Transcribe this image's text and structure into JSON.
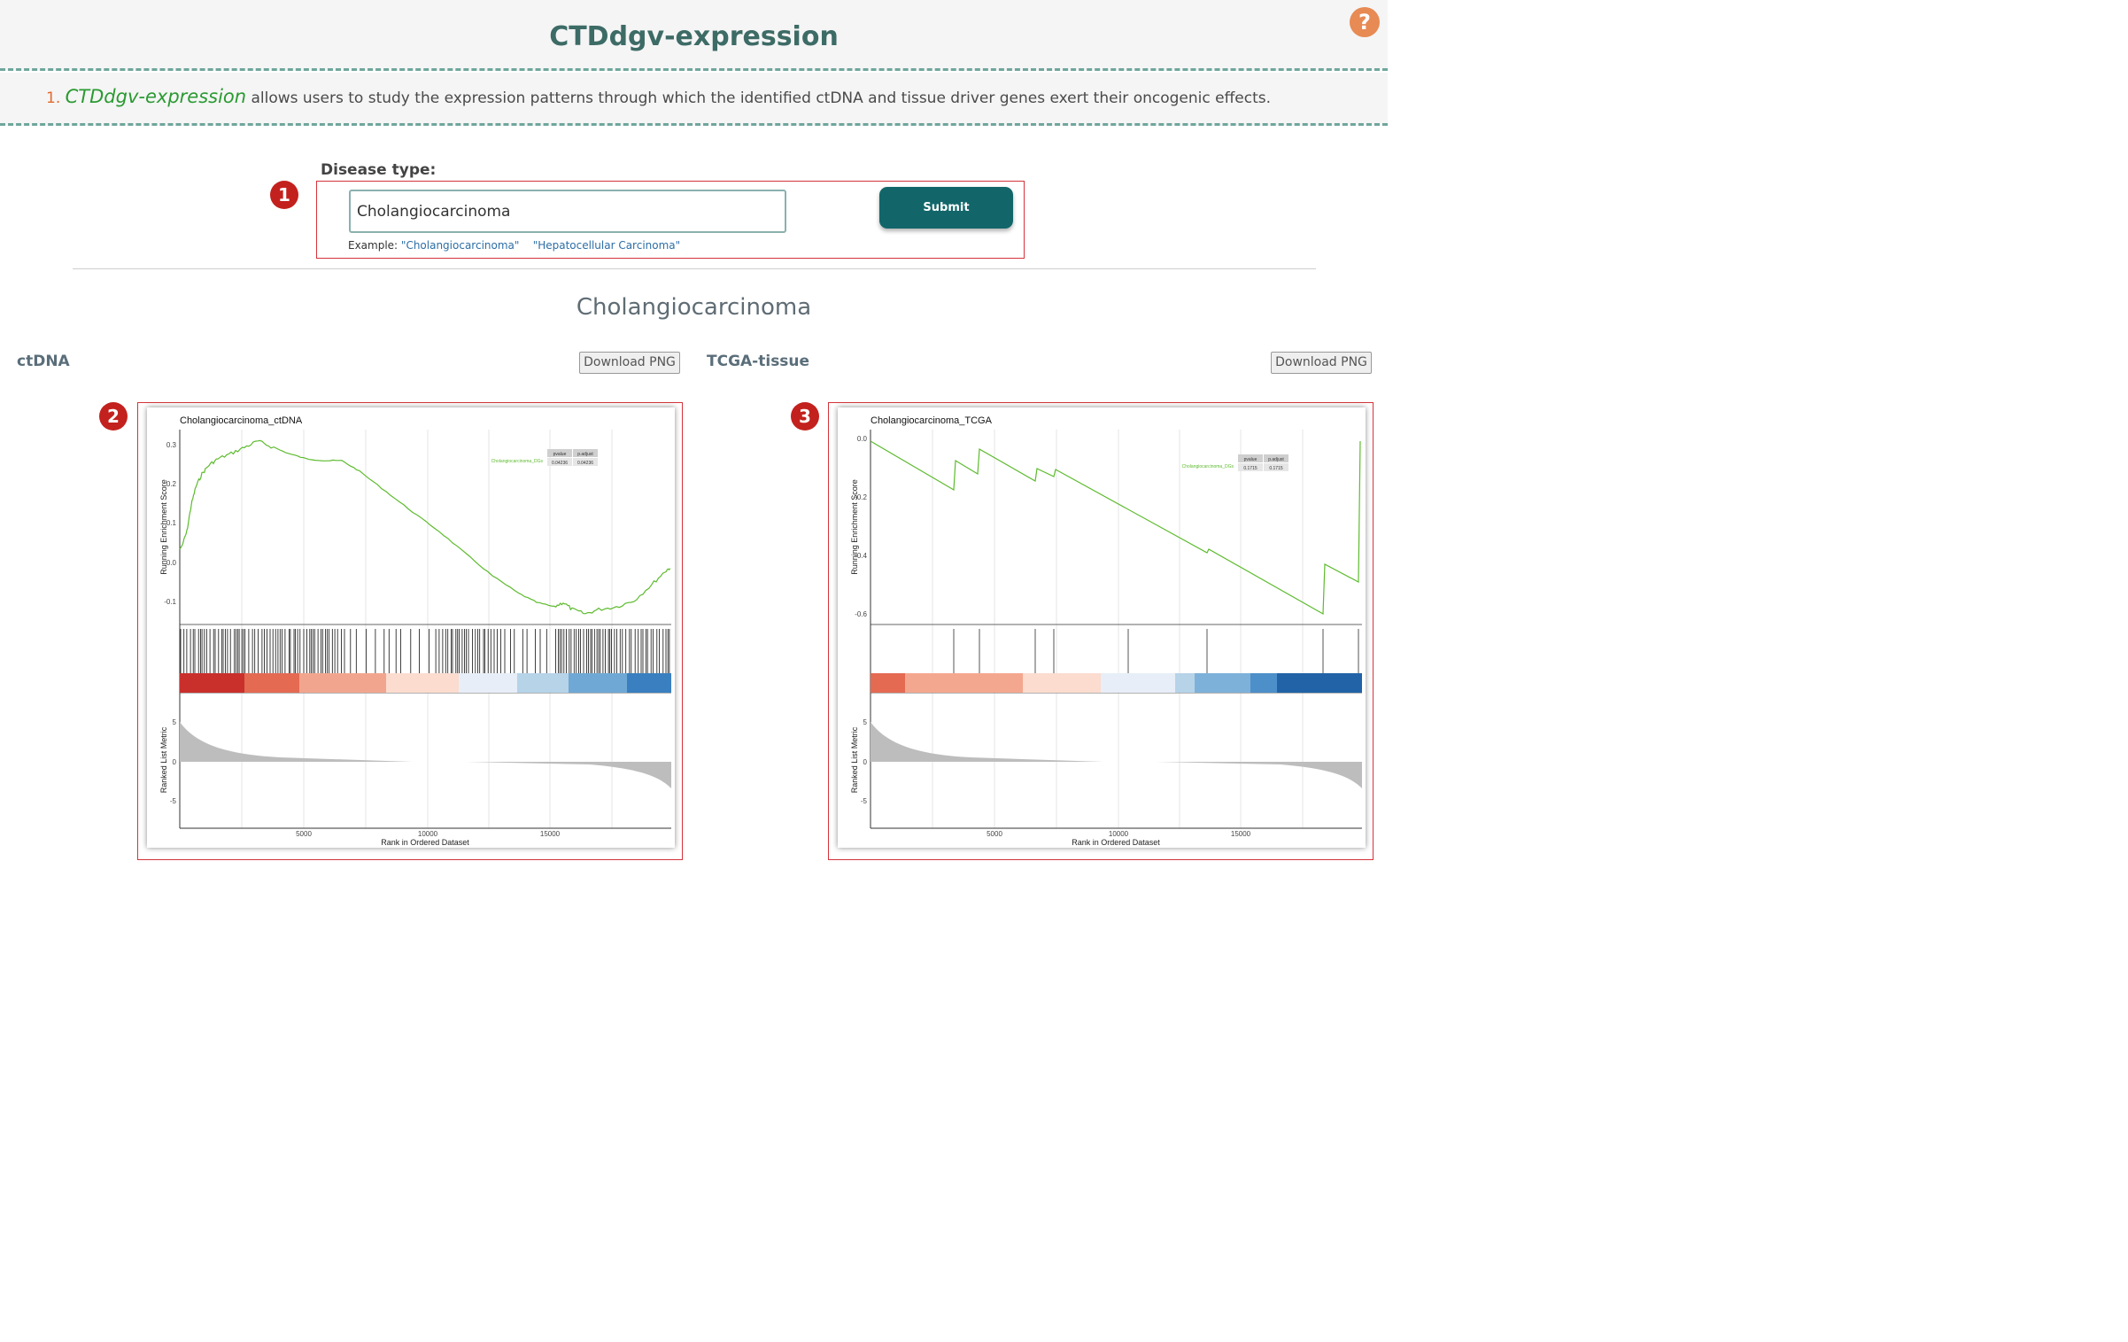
{
  "header": {
    "title": "CTDdgv-expression",
    "help_icon": "question-icon",
    "help_label": "?"
  },
  "description": {
    "number": "1.",
    "brand": "CTDdgv-expression",
    "text": " allows users to study the expression patterns through which the identified ctDNA and tissue driver genes exert their oncogenic effects."
  },
  "form": {
    "label": "Disease type:",
    "input_value": "Cholangiocarcinoma",
    "submit_label": "Submit",
    "example_prefix": "Example: ",
    "examples": [
      "\"Cholangiocarcinoma\"",
      "\"Hepatocellular Carcinoma\""
    ]
  },
  "badges": [
    "1",
    "2",
    "3"
  ],
  "colors": {
    "accent": "#12666a",
    "title": "#3d6b66",
    "highlight_box": "#d4333a",
    "badge": "#c3211d",
    "curve": "#5dbb2e"
  },
  "result": {
    "title": "Cholangiocarcinoma",
    "panels": [
      {
        "label": "ctDNA",
        "download_label": "Download PNG",
        "plot_title": "Cholangiocarcinoma_ctDNA",
        "y_label_top": "Running Enrichment Score",
        "y_label_bottom": "Ranked List Metric",
        "x_label": "Rank in Ordered Dataset",
        "legend_name": "Cholangiocarcinoma_DGs",
        "table_headers": [
          "pvalue",
          "p.adjust"
        ],
        "table_values": [
          "0.04236",
          "0.04236"
        ],
        "y_ticks": [
          "0.3",
          "0.2",
          "0.1",
          "0.0",
          "-0.1"
        ],
        "bottom_y_ticks": [
          "5",
          "0",
          "-5"
        ],
        "x_ticks": [
          "5000",
          "10000",
          "15000"
        ]
      },
      {
        "label": "TCGA-tissue",
        "download_label": "Download PNG",
        "plot_title": "Cholangiocarcinoma_TCGA",
        "y_label_top": "Running Enrichment Score",
        "y_label_bottom": "Ranked List Metric",
        "x_label": "Rank in Ordered Dataset",
        "legend_name": "Cholangiocarcinoma_DGs",
        "table_headers": [
          "pvalue",
          "p.adjust"
        ],
        "table_values": [
          "0.1715",
          "0.1715"
        ],
        "y_ticks": [
          "0.0",
          "-0.2",
          "-0.4",
          "-0.6"
        ],
        "bottom_y_ticks": [
          "5",
          "0",
          "-5"
        ],
        "x_ticks": [
          "5000",
          "10000",
          "15000"
        ]
      }
    ]
  }
}
